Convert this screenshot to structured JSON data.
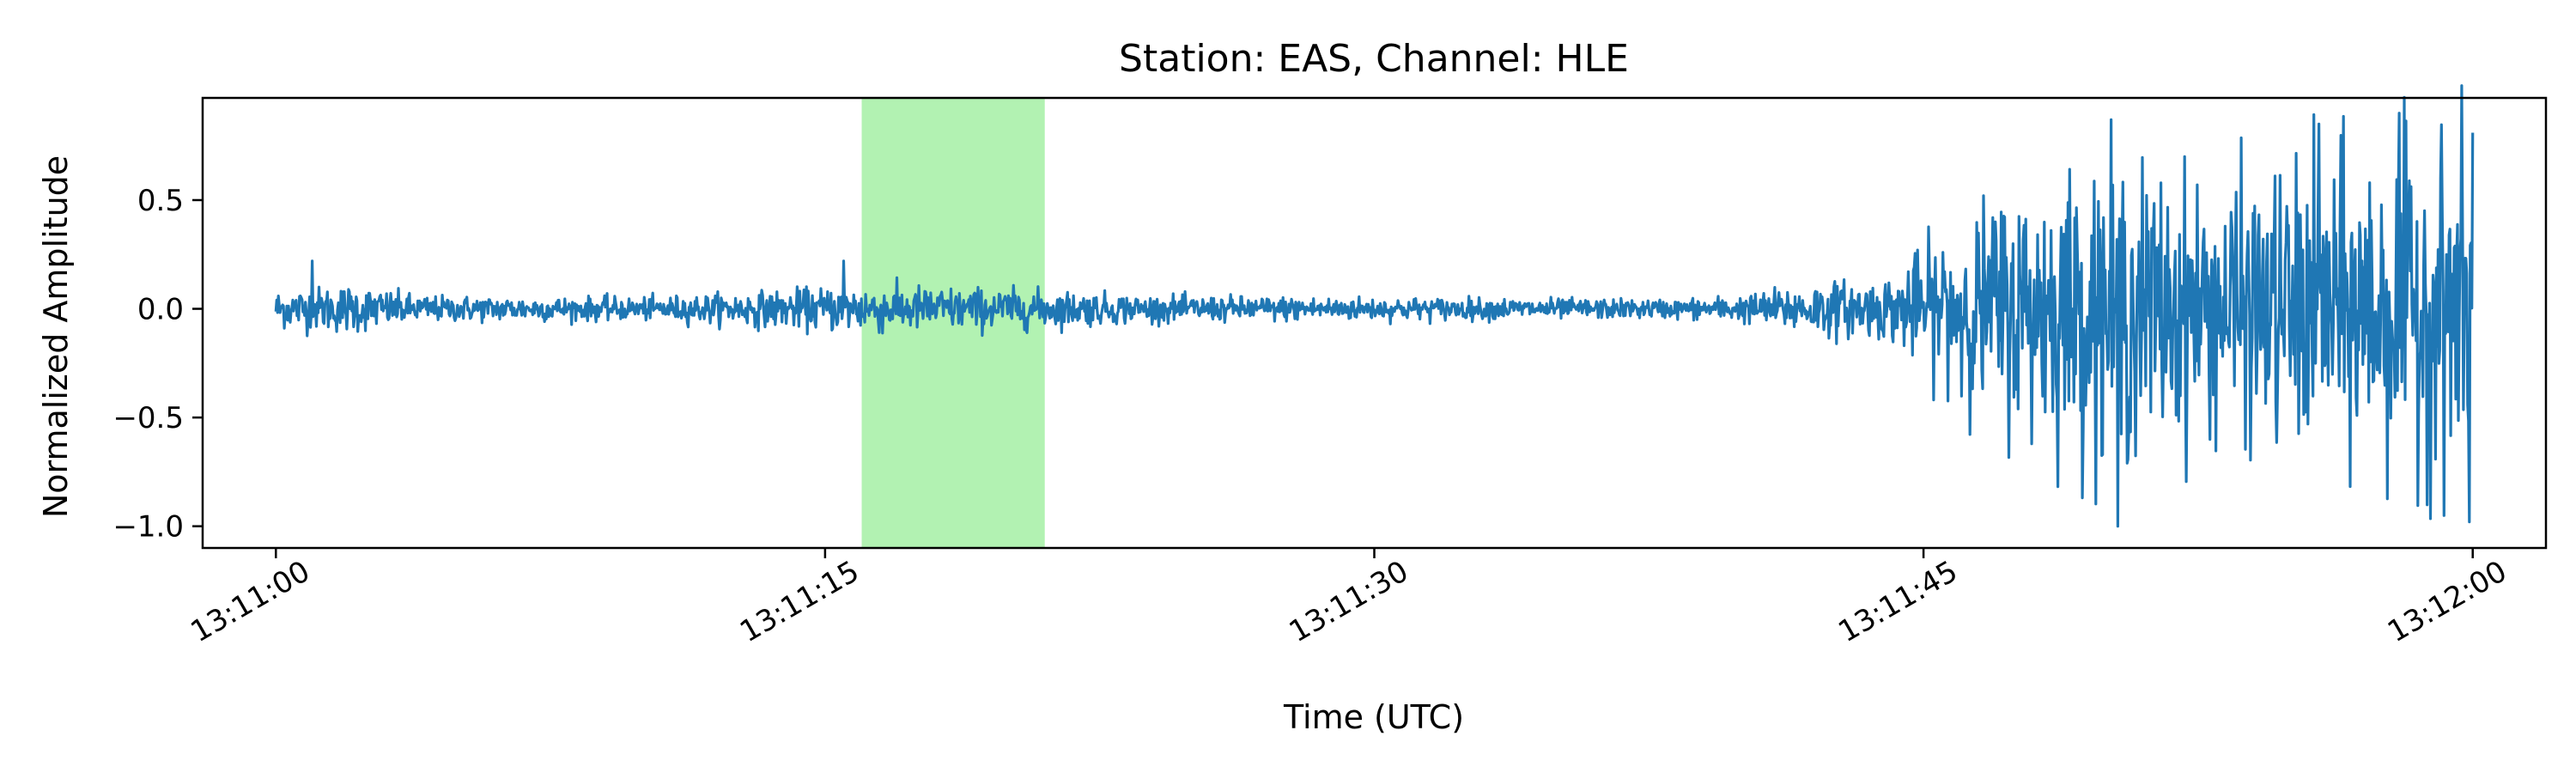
{
  "chart_data": {
    "type": "line",
    "title": "Station: EAS, Channel: HLE",
    "xlabel": "Time (UTC)",
    "ylabel": "Normalized Amplitude",
    "x_unit": "seconds after 13:11:00",
    "xlim": [
      -2,
      62
    ],
    "ylim": [
      -1.1,
      0.97
    ],
    "x_ticks": [
      {
        "value": 0,
        "label": "13:11:00"
      },
      {
        "value": 15,
        "label": "13:11:15"
      },
      {
        "value": 30,
        "label": "13:11:30"
      },
      {
        "value": 45,
        "label": "13:11:45"
      },
      {
        "value": 60,
        "label": "13:12:00"
      }
    ],
    "y_ticks": [
      {
        "value": 0.5,
        "label": "0.5"
      },
      {
        "value": 0.0,
        "label": "0.0"
      },
      {
        "value": -0.5,
        "label": "−0.5"
      },
      {
        "value": -1.0,
        "label": "−1.0"
      }
    ],
    "highlight": {
      "x_start": 16.0,
      "x_end": 21.0,
      "color": "#b2f2b2"
    },
    "grid": false,
    "legend": "none",
    "series": [
      {
        "color": "#1f77b4",
        "envelope": [
          {
            "x": 0,
            "amp": 0.1
          },
          {
            "x": 2,
            "amp": 0.13
          },
          {
            "x": 4,
            "amp": 0.07
          },
          {
            "x": 10,
            "amp": 0.06
          },
          {
            "x": 14,
            "amp": 0.1
          },
          {
            "x": 16,
            "amp": 0.13
          },
          {
            "x": 21,
            "amp": 0.1
          },
          {
            "x": 24,
            "amp": 0.07
          },
          {
            "x": 38,
            "amp": 0.05
          },
          {
            "x": 40,
            "amp": 0.07
          },
          {
            "x": 42,
            "amp": 0.14
          },
          {
            "x": 44,
            "amp": 0.16
          },
          {
            "x": 45.5,
            "amp": 0.4
          },
          {
            "x": 47,
            "amp": 0.6
          },
          {
            "x": 50,
            "amp": 0.8
          },
          {
            "x": 53,
            "amp": 0.65
          },
          {
            "x": 56,
            "amp": 0.8
          },
          {
            "x": 58,
            "amp": 0.85
          },
          {
            "x": 60,
            "amp": 0.9
          }
        ],
        "peaks": [
          {
            "x": 1.0,
            "y": 0.22
          },
          {
            "x": 15.5,
            "y": 0.22
          },
          {
            "x": 50.3,
            "y": -1.0
          },
          {
            "x": 55.8,
            "y": 0.85
          },
          {
            "x": 58.0,
            "y": 0.9
          },
          {
            "x": 59.9,
            "y": -0.98
          },
          {
            "x": 60.0,
            "y": 0.81
          }
        ]
      }
    ]
  }
}
